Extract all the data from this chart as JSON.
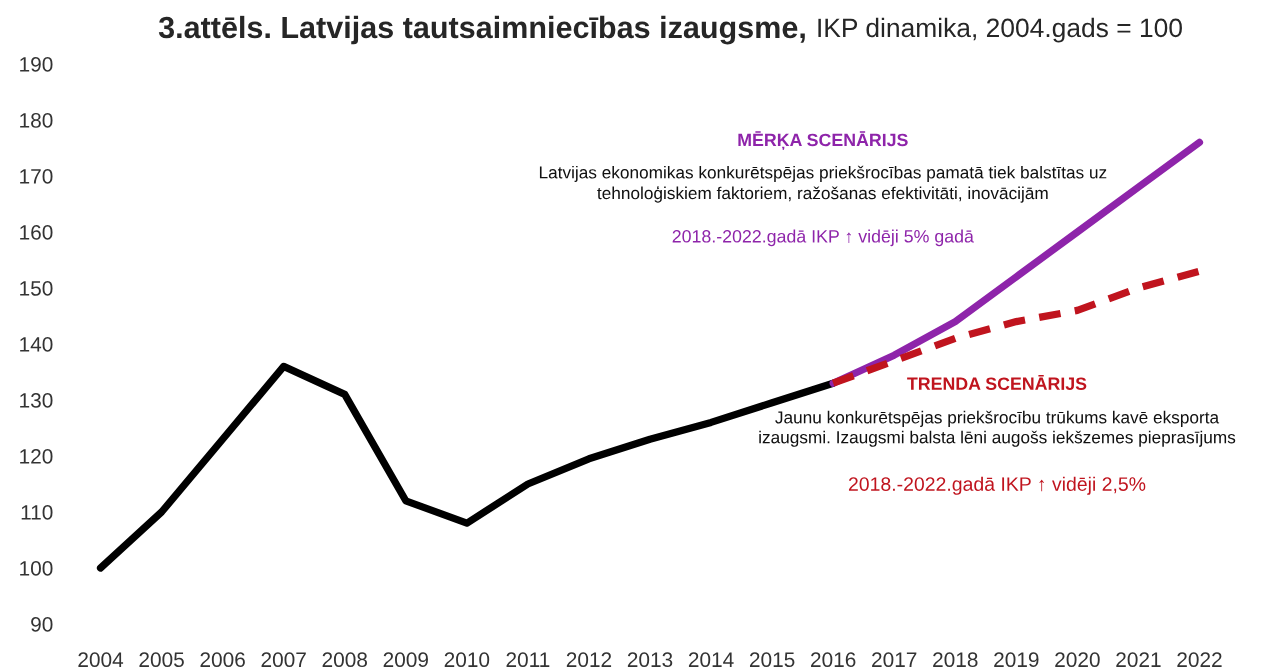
{
  "chart_data": {
    "type": "line",
    "title": "3.attēls. Latvijas tautsaimniecības izaugsme,",
    "subtitle": "IKP dinamika, 2004.gads = 100",
    "categories": [
      "2004",
      "2005",
      "2006",
      "2007",
      "2008",
      "2009",
      "2010",
      "2011",
      "2012",
      "2013",
      "2014",
      "2015",
      "2016",
      "2017",
      "2018",
      "2019",
      "2020",
      "2021",
      "2022"
    ],
    "series": [
      {
        "color": "#000000",
        "line_style": "solid",
        "values": [
          100,
          110,
          123,
          136,
          131,
          112,
          108,
          115,
          119.5,
          123,
          126,
          129.5,
          133,
          null,
          null,
          null,
          null,
          null,
          null
        ]
      },
      {
        "color": "#8e24aa",
        "line_style": "solid",
        "values": [
          null,
          null,
          null,
          null,
          null,
          null,
          null,
          null,
          null,
          null,
          null,
          null,
          133,
          138,
          144,
          152,
          160,
          168,
          176
        ]
      },
      {
        "color": "#c0141e",
        "line_style": "dashed",
        "values": [
          null,
          null,
          null,
          null,
          null,
          null,
          null,
          null,
          null,
          null,
          null,
          null,
          133,
          137,
          141,
          144,
          146,
          150,
          153
        ]
      }
    ],
    "ylim": [
      90,
      190
    ],
    "yticks": [
      90,
      100,
      110,
      120,
      130,
      140,
      150,
      160,
      170,
      180,
      190
    ],
    "grid": false,
    "legend": false,
    "annotations": [
      "MĒRĶA SCENĀRIJS",
      "Latvijas ekonomikas konkurētspējas priekšrocības pamatā tiek balstītas uz\ntehnoloģiskiem faktoriem, ražošanas efektivitāti, inovācijām",
      "2018.-2022.gadā IKP ↑ vidēji 5% gadā",
      "TRENDA SCENĀRIJS",
      "Jaunu konkurētspējas priekšrocību trūkums kavē eksporta\nizaugsmi. Izaugsmi balsta lēni augošs iekšzemes pieprasījums",
      "2018.-2022.gadā IKP ↑ vidēji 2,5%"
    ]
  }
}
